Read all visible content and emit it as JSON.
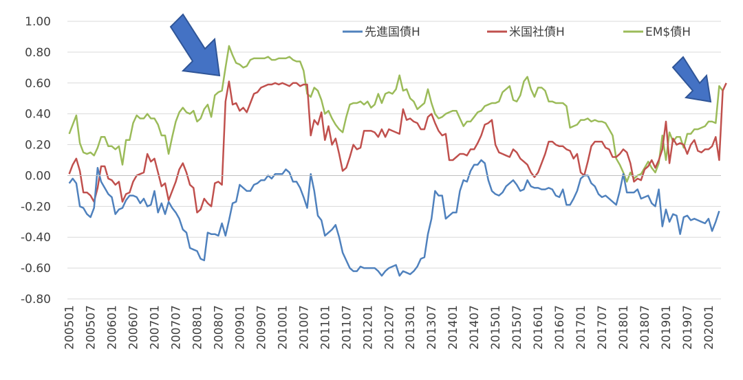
{
  "chart_data": {
    "type": "line",
    "title": "",
    "xlabel": "",
    "ylabel": "",
    "ylim": [
      -0.8,
      1.0
    ],
    "y_ticks": [
      "1.00",
      "0.80",
      "0.60",
      "0.40",
      "0.20",
      "0.00",
      "-0.20",
      "-0.40",
      "-0.60",
      "-0.80"
    ],
    "x_tick_labels": [
      "200501",
      "200507",
      "200601",
      "200607",
      "200701",
      "200707",
      "200801",
      "200807",
      "200901",
      "200907",
      "201001",
      "201007",
      "201101",
      "201107",
      "201201",
      "201207",
      "201301",
      "201307",
      "201401",
      "201407",
      "201501",
      "201507",
      "201601",
      "201607",
      "201701",
      "201707",
      "201801",
      "201807",
      "201901",
      "201907",
      "202001"
    ],
    "legend_position": "top-right",
    "series": [
      {
        "name": "先進国債H",
        "color": "#4F81BD",
        "values": [
          -0.05,
          -0.02,
          -0.05,
          -0.2,
          -0.21,
          -0.25,
          -0.27,
          -0.21,
          0.05,
          -0.04,
          -0.08,
          -0.12,
          -0.14,
          -0.25,
          -0.22,
          -0.21,
          -0.16,
          -0.13,
          -0.13,
          -0.14,
          -0.18,
          -0.15,
          -0.2,
          -0.19,
          -0.1,
          -0.24,
          -0.18,
          -0.25,
          -0.17,
          -0.21,
          -0.24,
          -0.28,
          -0.35,
          -0.37,
          -0.47,
          -0.48,
          -0.49,
          -0.54,
          -0.55,
          -0.37,
          -0.38,
          -0.38,
          -0.39,
          -0.31,
          -0.39,
          -0.29,
          -0.18,
          -0.17,
          -0.06,
          -0.08,
          -0.1,
          -0.1,
          -0.06,
          -0.05,
          -0.03,
          -0.03,
          0.0,
          -0.02,
          0.01,
          0.01,
          0.01,
          0.04,
          0.02,
          -0.04,
          -0.04,
          -0.08,
          -0.14,
          -0.21,
          0.01,
          -0.1,
          -0.26,
          -0.29,
          -0.39,
          -0.37,
          -0.35,
          -0.32,
          -0.4,
          -0.5,
          -0.55,
          -0.6,
          -0.62,
          -0.62,
          -0.59,
          -0.6,
          -0.6,
          -0.6,
          -0.6,
          -0.62,
          -0.65,
          -0.62,
          -0.6,
          -0.59,
          -0.58,
          -0.65,
          -0.62,
          -0.63,
          -0.64,
          -0.62,
          -0.59,
          -0.54,
          -0.53,
          -0.38,
          -0.28,
          -0.1,
          -0.13,
          -0.13,
          -0.28,
          -0.26,
          -0.24,
          -0.24,
          -0.1,
          -0.03,
          -0.04,
          0.03,
          0.07,
          0.07,
          0.1,
          0.08,
          -0.03,
          -0.1,
          -0.12,
          -0.13,
          -0.11,
          -0.07,
          -0.05,
          -0.03,
          -0.06,
          -0.1,
          -0.09,
          -0.03,
          -0.07,
          -0.08,
          -0.08,
          -0.09,
          -0.09,
          -0.08,
          -0.09,
          -0.13,
          -0.14,
          -0.09,
          -0.19,
          -0.19,
          -0.15,
          -0.1,
          -0.02,
          0.0,
          0.0,
          -0.05,
          -0.07,
          -0.12,
          -0.14,
          -0.13,
          -0.15,
          -0.17,
          -0.19,
          -0.1,
          0.01,
          -0.11,
          -0.11,
          -0.11,
          -0.09,
          -0.15,
          -0.14,
          -0.13,
          -0.18,
          -0.2,
          -0.09,
          -0.33,
          -0.22,
          -0.3,
          -0.25,
          -0.26,
          -0.38,
          -0.27,
          -0.26,
          -0.29,
          -0.28,
          -0.29,
          -0.3,
          -0.31,
          -0.28,
          -0.36,
          -0.3,
          -0.23
        ]
      },
      {
        "name": "米国社債H",
        "color": "#C0504D",
        "values": [
          0.01,
          0.07,
          0.11,
          0.03,
          -0.11,
          -0.11,
          -0.13,
          -0.17,
          -0.08,
          0.06,
          0.06,
          -0.02,
          -0.03,
          -0.06,
          -0.04,
          -0.17,
          -0.12,
          -0.11,
          -0.04,
          0.0,
          0.01,
          0.02,
          0.14,
          0.09,
          0.11,
          0.02,
          -0.07,
          -0.05,
          -0.16,
          -0.1,
          -0.04,
          0.04,
          0.08,
          0.02,
          -0.06,
          -0.08,
          -0.24,
          -0.22,
          -0.15,
          -0.18,
          -0.2,
          -0.05,
          -0.04,
          -0.06,
          0.48,
          0.61,
          0.46,
          0.47,
          0.42,
          0.44,
          0.41,
          0.47,
          0.53,
          0.54,
          0.57,
          0.58,
          0.59,
          0.59,
          0.6,
          0.59,
          0.6,
          0.59,
          0.58,
          0.6,
          0.6,
          0.58,
          0.59,
          0.59,
          0.26,
          0.36,
          0.33,
          0.41,
          0.23,
          0.32,
          0.2,
          0.24,
          0.14,
          0.03,
          0.05,
          0.12,
          0.2,
          0.17,
          0.18,
          0.29,
          0.29,
          0.29,
          0.28,
          0.25,
          0.3,
          0.25,
          0.3,
          0.29,
          0.28,
          0.27,
          0.43,
          0.36,
          0.37,
          0.35,
          0.34,
          0.3,
          0.3,
          0.38,
          0.4,
          0.34,
          0.29,
          0.26,
          0.27,
          0.1,
          0.1,
          0.12,
          0.14,
          0.14,
          0.13,
          0.17,
          0.17,
          0.21,
          0.26,
          0.33,
          0.34,
          0.36,
          0.2,
          0.15,
          0.14,
          0.13,
          0.12,
          0.17,
          0.15,
          0.11,
          0.09,
          0.07,
          0.02,
          -0.01,
          0.02,
          0.08,
          0.14,
          0.22,
          0.22,
          0.2,
          0.19,
          0.19,
          0.17,
          0.16,
          0.11,
          0.14,
          0.02,
          0.0,
          0.09,
          0.19,
          0.22,
          0.22,
          0.22,
          0.18,
          0.17,
          0.12,
          0.12,
          0.14,
          0.17,
          0.15,
          0.08,
          -0.04,
          -0.02,
          -0.03,
          0.04,
          0.06,
          0.1,
          0.05,
          0.1,
          0.17,
          0.35,
          0.08,
          0.24,
          0.2,
          0.21,
          0.2,
          0.14,
          0.2,
          0.23,
          0.16,
          0.15,
          0.17,
          0.17,
          0.19,
          0.25,
          0.1,
          0.55,
          0.6
        ]
      },
      {
        "name": "EM$債H",
        "color": "#9BBB59",
        "values": [
          0.27,
          0.33,
          0.39,
          0.21,
          0.15,
          0.14,
          0.15,
          0.13,
          0.18,
          0.25,
          0.25,
          0.19,
          0.19,
          0.17,
          0.19,
          0.07,
          0.23,
          0.23,
          0.34,
          0.39,
          0.37,
          0.37,
          0.4,
          0.37,
          0.37,
          0.33,
          0.26,
          0.26,
          0.14,
          0.25,
          0.35,
          0.41,
          0.44,
          0.41,
          0.4,
          0.42,
          0.35,
          0.37,
          0.43,
          0.46,
          0.38,
          0.52,
          0.54,
          0.55,
          0.7,
          0.84,
          0.78,
          0.73,
          0.72,
          0.7,
          0.71,
          0.75,
          0.76,
          0.76,
          0.76,
          0.76,
          0.77,
          0.75,
          0.75,
          0.76,
          0.76,
          0.76,
          0.77,
          0.75,
          0.74,
          0.74,
          0.68,
          0.53,
          0.51,
          0.57,
          0.55,
          0.49,
          0.4,
          0.42,
          0.37,
          0.33,
          0.3,
          0.28,
          0.38,
          0.46,
          0.47,
          0.47,
          0.48,
          0.46,
          0.48,
          0.44,
          0.46,
          0.53,
          0.47,
          0.53,
          0.54,
          0.53,
          0.56,
          0.65,
          0.55,
          0.56,
          0.5,
          0.48,
          0.43,
          0.45,
          0.47,
          0.56,
          0.47,
          0.4,
          0.37,
          0.38,
          0.4,
          0.41,
          0.42,
          0.42,
          0.37,
          0.32,
          0.35,
          0.35,
          0.38,
          0.41,
          0.42,
          0.45,
          0.46,
          0.47,
          0.47,
          0.48,
          0.54,
          0.56,
          0.58,
          0.49,
          0.48,
          0.52,
          0.61,
          0.64,
          0.56,
          0.51,
          0.57,
          0.57,
          0.55,
          0.48,
          0.48,
          0.47,
          0.47,
          0.47,
          0.45,
          0.31,
          0.32,
          0.33,
          0.36,
          0.36,
          0.37,
          0.35,
          0.36,
          0.35,
          0.35,
          0.34,
          0.3,
          0.26,
          0.11,
          0.07,
          0.02,
          -0.04,
          0.02,
          -0.02,
          0.0,
          0.01,
          0.05,
          0.09,
          0.05,
          0.02,
          0.08,
          0.26,
          0.1,
          0.28,
          0.22,
          0.25,
          0.25,
          0.18,
          0.27,
          0.27,
          0.3,
          0.3,
          0.31,
          0.32,
          0.35,
          0.35,
          0.34,
          0.58,
          0.55
        ]
      }
    ],
    "annotations": [
      "arrow-down-right",
      "arrow-down-right"
    ]
  }
}
